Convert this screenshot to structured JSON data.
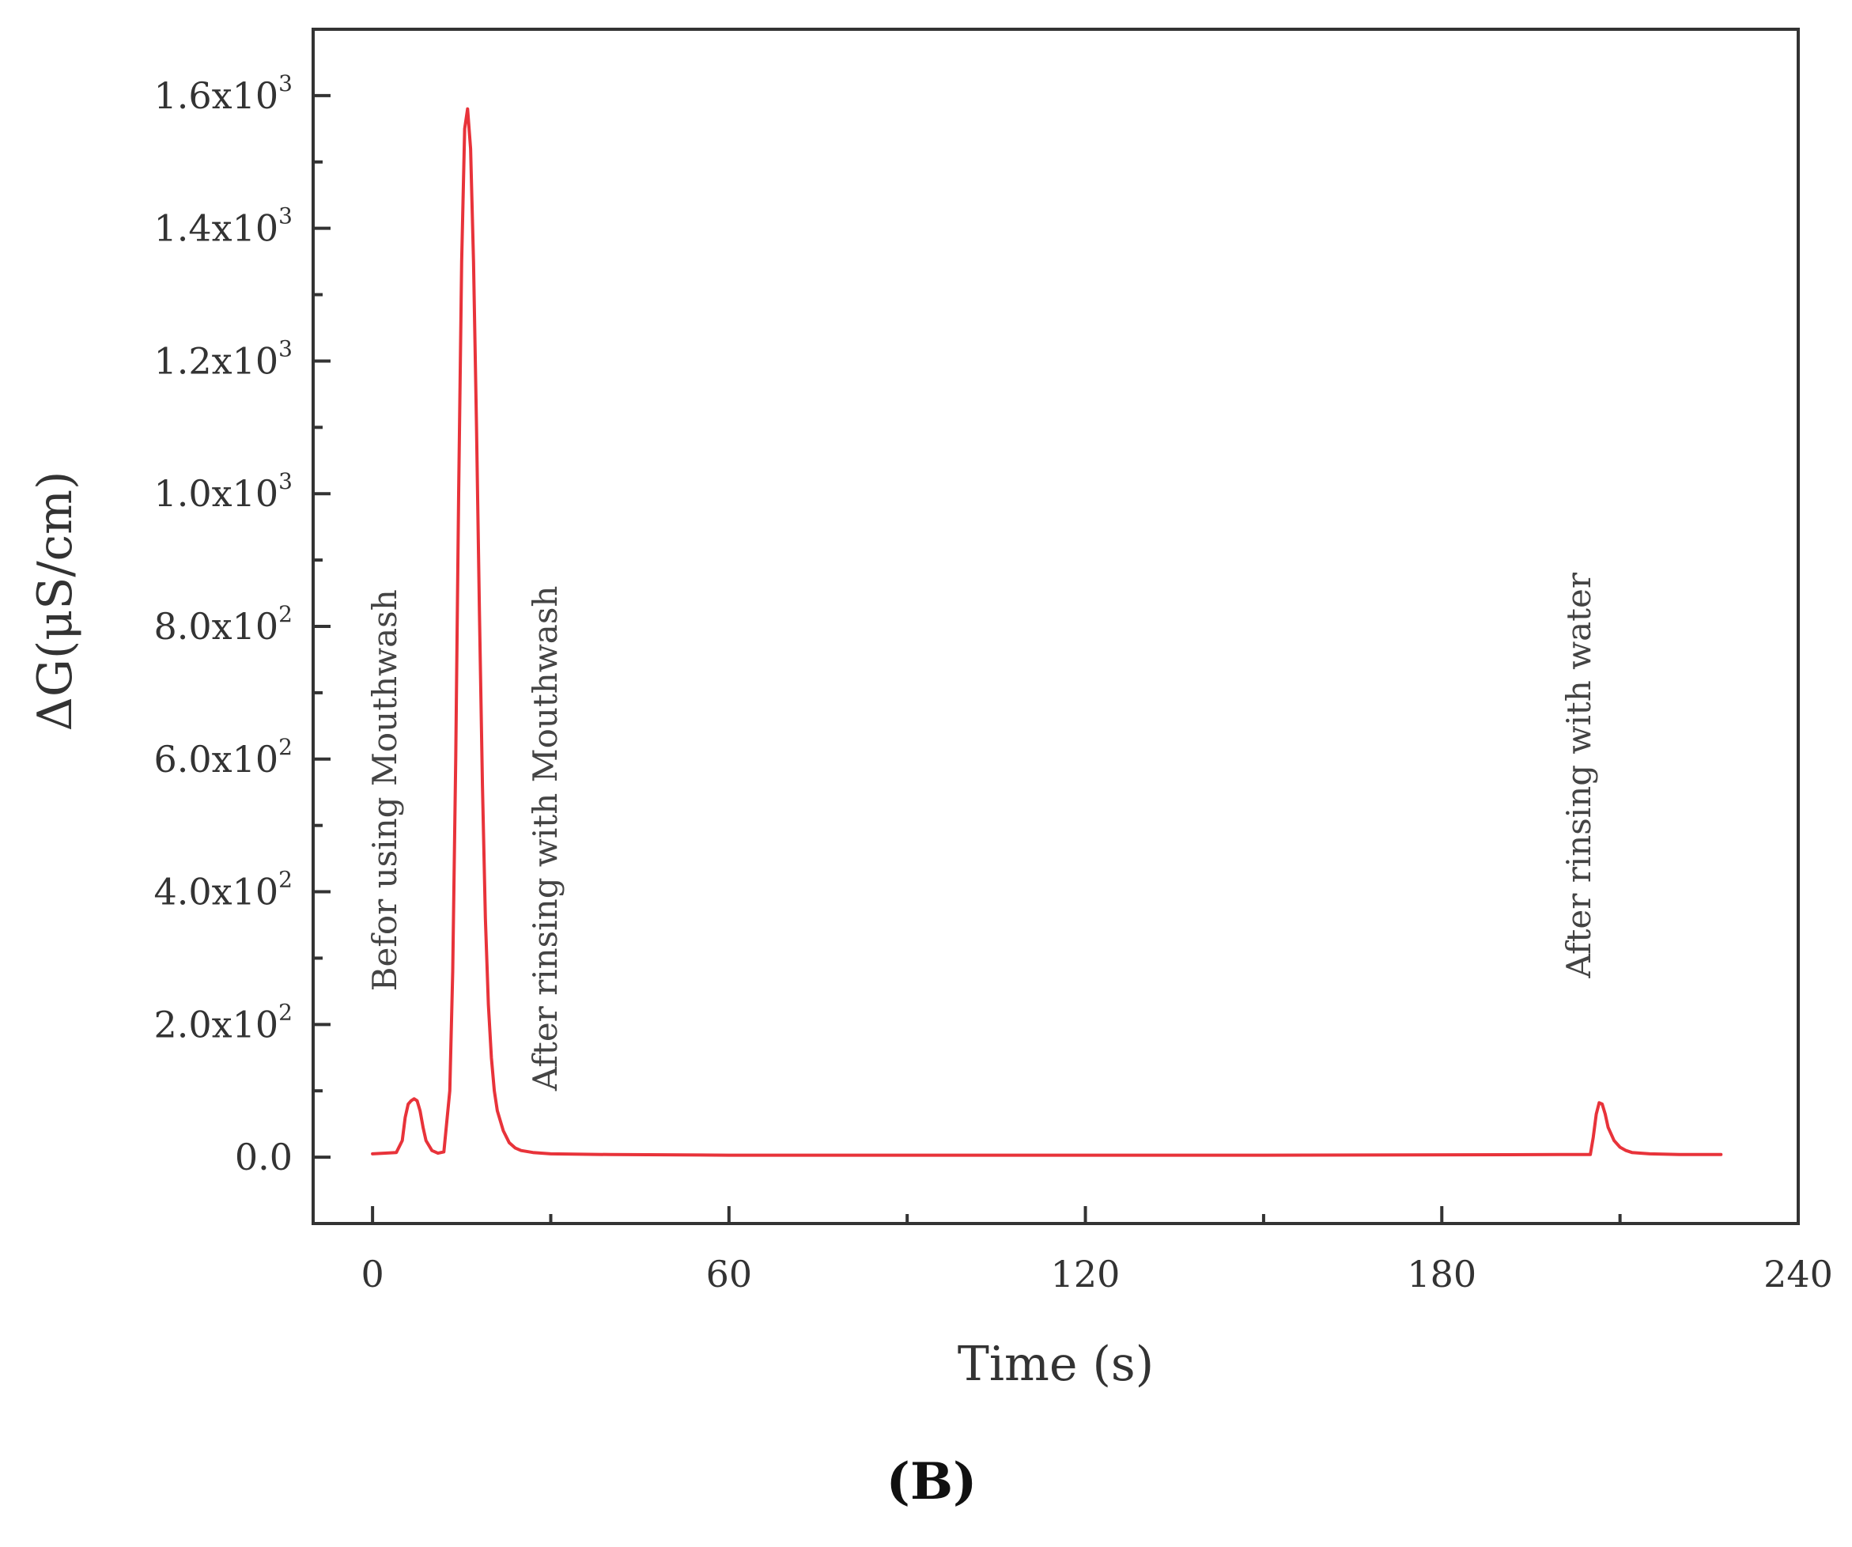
{
  "chart_data": {
    "type": "line",
    "xlabel": "Time (s)",
    "ylabel": "ΔG(μS/cm)",
    "xlim": [
      -10,
      240
    ],
    "ylim": [
      -100,
      1700
    ],
    "x_ticks": [
      0,
      60,
      120,
      180,
      240
    ],
    "x_tick_labels": [
      "0",
      "60",
      "120",
      "180",
      "240"
    ],
    "y_ticks": [
      0,
      200,
      400,
      600,
      800,
      1000,
      1200,
      1400,
      1600
    ],
    "y_tick_labels": [
      {
        "mantissa": "0.0",
        "exponent": ""
      },
      {
        "mantissa": "2.0x10",
        "exponent": "2"
      },
      {
        "mantissa": "4.0x10",
        "exponent": "2"
      },
      {
        "mantissa": "6.0x10",
        "exponent": "2"
      },
      {
        "mantissa": "8.0x10",
        "exponent": "2"
      },
      {
        "mantissa": "1.0x10",
        "exponent": "3"
      },
      {
        "mantissa": "1.2x10",
        "exponent": "3"
      },
      {
        "mantissa": "1.4x10",
        "exponent": "3"
      },
      {
        "mantissa": "1.6x10",
        "exponent": "3"
      }
    ],
    "grid": false,
    "series": [
      {
        "color": "#e8333a",
        "x": [
          0,
          4,
          5,
          5.5,
          6,
          6.5,
          7,
          7.5,
          8,
          8.5,
          9,
          10,
          11,
          12,
          13,
          13.5,
          14,
          14.5,
          15,
          15.5,
          16,
          16.5,
          17,
          17.5,
          18,
          18.5,
          19,
          19.5,
          20,
          20.5,
          21,
          22,
          23,
          24,
          25,
          27,
          30,
          40,
          60,
          100,
          150,
          200,
          205,
          205.5,
          206,
          206.5,
          207,
          207.5,
          208,
          209,
          210,
          211,
          212,
          215,
          220,
          227
        ],
        "y": [
          5,
          7,
          25,
          60,
          80,
          85,
          88,
          85,
          70,
          45,
          25,
          10,
          6,
          8,
          100,
          280,
          600,
          1000,
          1350,
          1550,
          1580,
          1520,
          1350,
          1100,
          820,
          560,
          360,
          230,
          150,
          100,
          70,
          40,
          22,
          14,
          10,
          7,
          5,
          4,
          3,
          3,
          3,
          4,
          4,
          30,
          65,
          82,
          80,
          65,
          45,
          25,
          15,
          10,
          7,
          5,
          4,
          4
        ]
      }
    ],
    "annotations": [
      {
        "text": "Befor using Mouthwash",
        "x": 4,
        "y": 250
      },
      {
        "text": "After rinsing with Mouthwash",
        "x": 31,
        "y": 100
      },
      {
        "text": "After rinsing with water",
        "x": 205,
        "y": 270
      }
    ],
    "panel_label": "(B)"
  }
}
